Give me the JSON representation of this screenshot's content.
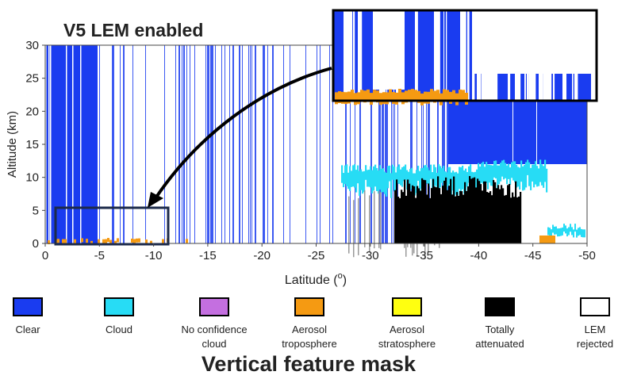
{
  "chart_data": {
    "type": "curtain",
    "title": "V5 LEM enabled",
    "caption": "Vertical feature mask",
    "xlabel": [
      "Latitude (",
      "o",
      ")"
    ],
    "ylabel": "Altitude (km)",
    "xlim": [
      0,
      -50
    ],
    "xticks": [
      0,
      -5,
      -10,
      -15,
      -20,
      -25,
      -30,
      -35,
      -40,
      -45,
      -50
    ],
    "ylim": [
      0,
      30
    ],
    "yticks": [
      0,
      5,
      10,
      15,
      20,
      25,
      30
    ],
    "legend": [
      {
        "label": [
          "Clear"
        ],
        "color": "#1a3cf0"
      },
      {
        "label": [
          "Cloud"
        ],
        "color": "#27dcf5"
      },
      {
        "label": [
          "No confidence",
          "cloud"
        ],
        "color": "#c46fe0"
      },
      {
        "label": [
          "Aerosol",
          "troposphere"
        ],
        "color": "#f59a12"
      },
      {
        "label": [
          "Aerosol",
          "stratosphere"
        ],
        "color": "#ffff10"
      },
      {
        "label": [
          "Totally",
          "attenuated"
        ],
        "color": "#000000"
      },
      {
        "label": [
          "LEM",
          "rejected"
        ],
        "color": "#ffffff"
      }
    ]
  }
}
